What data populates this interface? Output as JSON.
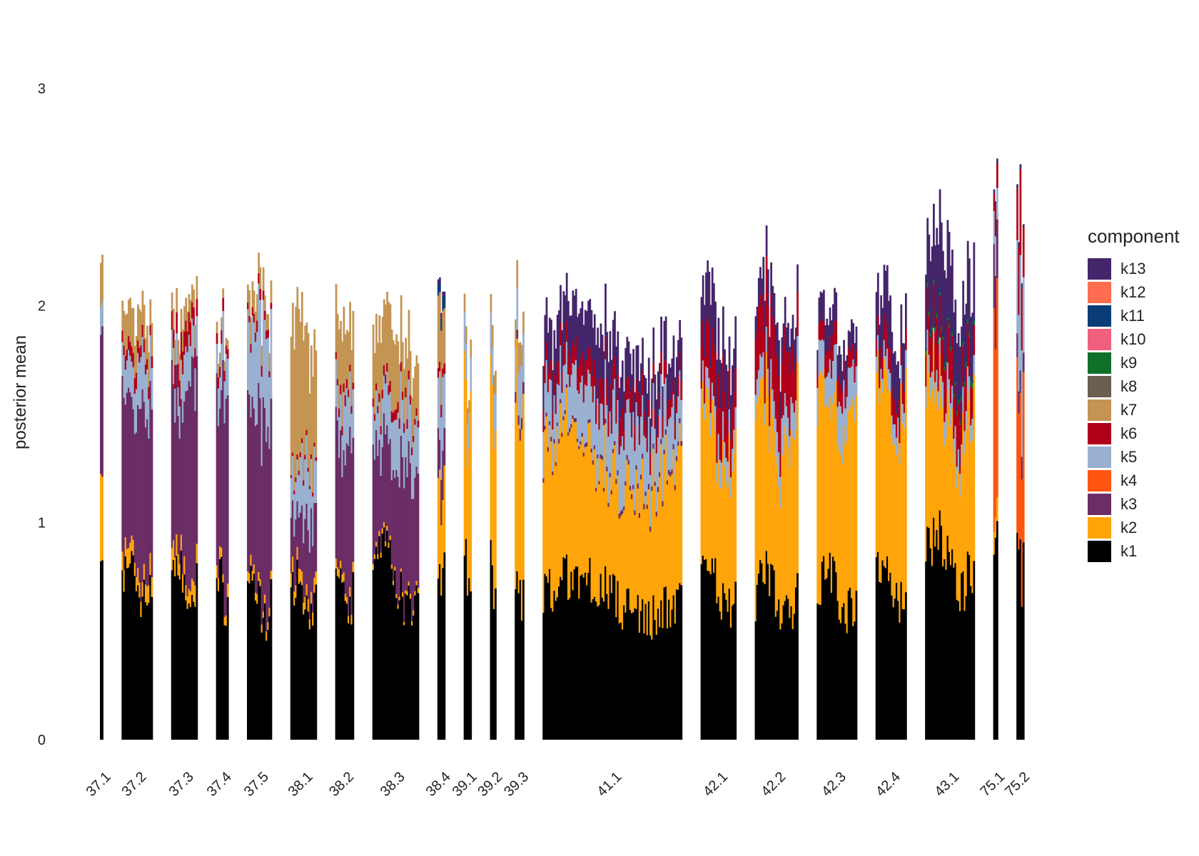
{
  "chart_data": {
    "type": "bar",
    "stacked": true,
    "ylabel": "posterior mean",
    "xlabel": "",
    "ylim": [
      0,
      3.2
    ],
    "yticks": [
      0,
      1,
      2,
      3
    ],
    "legend": {
      "title": "component",
      "placement": "right",
      "entries": [
        "k13",
        "k12",
        "k11",
        "k10",
        "k9",
        "k8",
        "k7",
        "k6",
        "k5",
        "k4",
        "k3",
        "k2",
        "k1"
      ]
    },
    "colors": {
      "k1": "#000000",
      "k2": "#FFA50A",
      "k3": "#6B2D65",
      "k4": "#FF5510",
      "k5": "#9AB0D0",
      "k6": "#B0001A",
      "k7": "#C49452",
      "k8": "#6B5E53",
      "k9": "#10702A",
      "k10": "#F0607E",
      "k11": "#0A3C78",
      "k12": "#FF6D50",
      "k13": "#44256A"
    },
    "stack_order": [
      "k1",
      "k2",
      "k4",
      "k3",
      "k5",
      "k6",
      "k7",
      "k8",
      "k9",
      "k10",
      "k11",
      "k12",
      "k13"
    ],
    "groups": [
      {
        "label": "37.1",
        "n": 2,
        "means": {
          "k1": 0.78,
          "k2": 0.38,
          "k3": 0.6,
          "k5": 0.12,
          "k7": 0.2
        }
      },
      {
        "label": "37.2",
        "n": 20,
        "means": {
          "k1": 0.72,
          "k2": 0.08,
          "k3": 0.72,
          "k5": 0.2,
          "k6": 0.06,
          "k7": 0.16
        }
      },
      {
        "label": "37.3",
        "n": 17,
        "means": {
          "k1": 0.74,
          "k2": 0.08,
          "k3": 0.8,
          "k5": 0.18,
          "k6": 0.1,
          "k7": 0.1
        }
      },
      {
        "label": "37.4",
        "n": 8,
        "means": {
          "k1": 0.72,
          "k2": 0.05,
          "k3": 0.85,
          "k5": 0.18,
          "k6": 0.05,
          "k7": 0.05
        }
      },
      {
        "label": "37.5",
        "n": 16,
        "means": {
          "k1": 0.66,
          "k2": 0.04,
          "k3": 0.78,
          "k5": 0.4,
          "k6": 0.04,
          "k7": 0.1
        }
      },
      {
        "label": "38.1",
        "n": 17,
        "means": {
          "k1": 0.66,
          "k2": 0.06,
          "k3": 0.3,
          "k5": 0.24,
          "k6": 0.02,
          "k7": 0.62
        }
      },
      {
        "label": "38.2",
        "n": 12,
        "means": {
          "k1": 0.68,
          "k2": 0.04,
          "k3": 0.62,
          "k5": 0.22,
          "k6": 0.04,
          "k7": 0.3
        }
      },
      {
        "label": "38.3",
        "n": 30,
        "means": {
          "k1": 0.74,
          "k2": 0.02,
          "k3": 0.5,
          "k5": 0.24,
          "k6": 0.04,
          "k7": 0.3
        }
      },
      {
        "label": "38.4",
        "n": 5,
        "means": {
          "k1": 0.8,
          "k2": 0.4,
          "k3": 0.2,
          "k5": 0.3,
          "k6": 0.05,
          "k7": 0.3,
          "k11": 0.06,
          "k13": 0.02
        }
      },
      {
        "label": "39.1",
        "n": 5,
        "means": {
          "k1": 0.8,
          "k2": 0.8,
          "k5": 0.18,
          "k7": 0.08
        }
      },
      {
        "label": "39.2",
        "n": 4,
        "means": {
          "k1": 0.82,
          "k2": 0.76,
          "k5": 0.2,
          "k7": 0.1
        }
      },
      {
        "label": "39.3",
        "n": 6,
        "means": {
          "k1": 0.7,
          "k2": 0.84,
          "k3": 0.05,
          "k5": 0.22,
          "k7": 0.12
        }
      },
      {
        "label": "41.1",
        "n": 90,
        "means": {
          "k1": 0.66,
          "k2": 0.62,
          "k3": 0.02,
          "k5": 0.26,
          "k6": 0.1,
          "k13": 0.2
        }
      },
      {
        "label": "42.1",
        "n": 23,
        "means": {
          "k1": 0.72,
          "k2": 0.66,
          "k5": 0.1,
          "k6": 0.22,
          "k13": 0.22
        }
      },
      {
        "label": "42.2",
        "n": 28,
        "means": {
          "k1": 0.66,
          "k2": 0.76,
          "k5": 0.14,
          "k6": 0.28,
          "k13": 0.14
        }
      },
      {
        "label": "42.3",
        "n": 26,
        "means": {
          "k1": 0.68,
          "k2": 0.84,
          "k5": 0.18,
          "k6": 0.1,
          "k13": 0.12
        }
      },
      {
        "label": "42.4",
        "n": 20,
        "means": {
          "k1": 0.74,
          "k2": 0.82,
          "k5": 0.08,
          "k6": 0.1,
          "k13": 0.22
        }
      },
      {
        "label": "43.1",
        "n": 32,
        "means": {
          "k1": 0.82,
          "k2": 0.66,
          "k5": 0.1,
          "k6": 0.2,
          "k9": 0.02,
          "k11": 0.02,
          "k13": 0.36
        }
      },
      {
        "label": "75.1",
        "n": 3,
        "means": {
          "k1": 0.96,
          "k2": 0.1,
          "k3": 0.3,
          "k4": 0.8,
          "k5": 0.16,
          "k6": 0.12,
          "k13": 0.02
        }
      },
      {
        "label": "75.2",
        "n": 5,
        "means": {
          "k1": 0.88,
          "k3": 0.1,
          "k4": 0.66,
          "k5": 0.44,
          "k6": 0.3,
          "k13": 0.02
        }
      }
    ]
  }
}
